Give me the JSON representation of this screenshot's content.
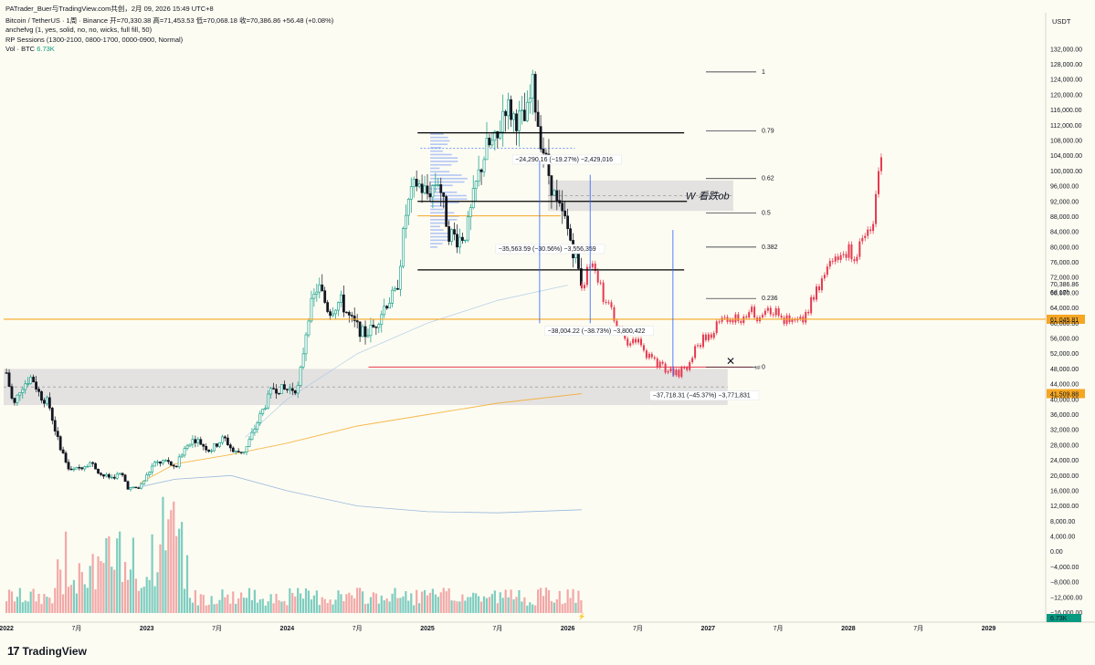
{
  "header": {
    "credit": "PATrader_Buer与TradingView.com共创，2月 09, 2026 15:49 UTC+8",
    "symbol_line": "Bitcoin / TetherUS · 1周 · Binance  开=70,330.38  高=71,453.53  低=70,068.18  收=70,386.86  +56.48 (+0.08%)",
    "indicator1": "anchefvg (1, yes, solid, no, no, wicks, full fill, 50)",
    "indicator2": "RP Sessions (1300-2100, 0800-1700, 0000-0900, Normal)",
    "vol_label": "Vol · BTC",
    "vol_value": "6.73K",
    "currency": "USDT"
  },
  "logo": {
    "icon": "tradingview-logo-icon",
    "text": "TradingView"
  },
  "colors": {
    "background": "#fdfcf2",
    "bull": "#089981",
    "bear": "#131722",
    "projection": "#e53950",
    "orange_line": "#f5a623",
    "vol_bull": "#7fcdc1",
    "vol_bear": "#f2a8a8",
    "zone": "#d9d9d9",
    "measure": "#2962ff"
  },
  "chart_data": {
    "type": "candlestick",
    "yaxis": {
      "min": -16000,
      "max": 134000,
      "ticks": [
        "132,000.00",
        "128,000.00",
        "124,000.00",
        "120,000.00",
        "116,000.00",
        "112,000.00",
        "108,000.00",
        "104,000.00",
        "100,000.00",
        "96,000.00",
        "92,000.00",
        "88,000.00",
        "84,000.00",
        "80,000.00",
        "76,000.00",
        "72,000.00",
        "68,000.00",
        "64,000.00",
        "60,000.00",
        "56,000.00",
        "52,000.00",
        "48,000.00",
        "44,000.00",
        "40,000.00",
        "36,000.00",
        "32,000.00",
        "28,000.00",
        "24,000.00",
        "20,000.00",
        "16,000.00",
        "12,000.00",
        "8,000.00",
        "4,000.00",
        "0.00",
        "−4,000.00",
        "−8,000.00",
        "−12,000.00",
        "−16,000.00"
      ]
    },
    "xaxis": {
      "labels": [
        {
          "text": "2022",
          "t": 2022.0
        },
        {
          "text": "7月",
          "t": 2022.5
        },
        {
          "text": "2023",
          "t": 2023.0
        },
        {
          "text": "7月",
          "t": 2023.5
        },
        {
          "text": "2024",
          "t": 2024.0
        },
        {
          "text": "7月",
          "t": 2024.5
        },
        {
          "text": "2025",
          "t": 2025.0
        },
        {
          "text": "7月",
          "t": 2025.5
        },
        {
          "text": "2026",
          "t": 2026.0
        },
        {
          "text": "7月",
          "t": 2026.5
        },
        {
          "text": "2027",
          "t": 2027.0
        },
        {
          "text": "7月",
          "t": 2027.5
        },
        {
          "text": "2028",
          "t": 2028.0
        },
        {
          "text": "7月",
          "t": 2028.5
        },
        {
          "text": "2029",
          "t": 2029.0
        }
      ],
      "min": 2021.98,
      "max": 2029.4
    },
    "price_path": [
      [
        2022.0,
        47000
      ],
      [
        2022.05,
        38000
      ],
      [
        2022.1,
        43000
      ],
      [
        2022.18,
        46000
      ],
      [
        2022.24,
        41000
      ],
      [
        2022.3,
        39000
      ],
      [
        2022.36,
        30000
      ],
      [
        2022.45,
        21000
      ],
      [
        2022.52,
        22000
      ],
      [
        2022.6,
        23500
      ],
      [
        2022.68,
        20000
      ],
      [
        2022.75,
        19500
      ],
      [
        2022.82,
        20500
      ],
      [
        2022.87,
        16500
      ],
      [
        2022.95,
        16800
      ],
      [
        2023.05,
        23000
      ],
      [
        2023.15,
        24000
      ],
      [
        2023.2,
        21500
      ],
      [
        2023.28,
        28500
      ],
      [
        2023.35,
        29500
      ],
      [
        2023.45,
        26500
      ],
      [
        2023.55,
        30000
      ],
      [
        2023.62,
        26000
      ],
      [
        2023.7,
        26500
      ],
      [
        2023.8,
        35000
      ],
      [
        2023.9,
        43000
      ],
      [
        2023.98,
        42500
      ],
      [
        2024.08,
        43000
      ],
      [
        2024.15,
        62000
      ],
      [
        2024.22,
        70000
      ],
      [
        2024.3,
        63000
      ],
      [
        2024.38,
        66000
      ],
      [
        2024.45,
        61000
      ],
      [
        2024.55,
        57000
      ],
      [
        2024.62,
        59000
      ],
      [
        2024.7,
        65000
      ],
      [
        2024.78,
        68000
      ],
      [
        2024.85,
        90000
      ],
      [
        2024.92,
        97000
      ],
      [
        2025.0,
        94000
      ],
      [
        2025.08,
        98000
      ],
      [
        2025.15,
        84000
      ],
      [
        2025.22,
        82000
      ],
      [
        2025.28,
        84000
      ],
      [
        2025.35,
        97000
      ],
      [
        2025.42,
        106000
      ],
      [
        2025.5,
        108000
      ],
      [
        2025.55,
        118000
      ],
      [
        2025.62,
        114000
      ],
      [
        2025.7,
        113000
      ],
      [
        2025.75,
        122000
      ],
      [
        2025.8,
        110000
      ],
      [
        2025.86,
        100000
      ],
      [
        2025.92,
        91000
      ],
      [
        2025.98,
        87000
      ],
      [
        2026.05,
        78000
      ],
      [
        2026.1,
        70400
      ]
    ],
    "projection_path": [
      [
        2026.1,
        70400
      ],
      [
        2026.16,
        76000
      ],
      [
        2026.22,
        70000
      ],
      [
        2026.28,
        65000
      ],
      [
        2026.34,
        60000
      ],
      [
        2026.4,
        55000
      ],
      [
        2026.48,
        56000
      ],
      [
        2026.55,
        52000
      ],
      [
        2026.62,
        50000
      ],
      [
        2026.7,
        48000
      ],
      [
        2026.78,
        46500
      ],
      [
        2026.85,
        48000
      ],
      [
        2026.92,
        54000
      ],
      [
        2027.0,
        57000
      ],
      [
        2027.08,
        60000
      ],
      [
        2027.14,
        62000
      ],
      [
        2027.2,
        61000
      ],
      [
        2027.28,
        63000
      ],
      [
        2027.35,
        62000
      ],
      [
        2027.42,
        65000
      ],
      [
        2027.5,
        62000
      ],
      [
        2027.58,
        60000
      ],
      [
        2027.66,
        60000
      ],
      [
        2027.75,
        66000
      ],
      [
        2027.85,
        74000
      ],
      [
        2027.95,
        80000
      ],
      [
        2028.05,
        78000
      ],
      [
        2028.12,
        83000
      ],
      [
        2028.18,
        88000
      ],
      [
        2028.24,
        104000
      ]
    ],
    "horizontal_lines": [
      {
        "name": "orange-level",
        "price": 61045.81,
        "label": "61,045.81",
        "color": "#f5a623"
      },
      {
        "name": "current-price",
        "price": 70386.86,
        "label": "70,386.86",
        "sublabel": "6d 17h"
      },
      {
        "name": "ssl-level",
        "price": 48500,
        "label": "ssl",
        "t1": 2024.58,
        "t2": 2027.32
      },
      {
        "name": "resistance-top",
        "price": 110000,
        "t1": 2024.93,
        "t2": 2026.83
      },
      {
        "name": "resistance-mid",
        "price": 92000,
        "t1": 2024.93,
        "t2": 2026.85
      },
      {
        "name": "support-low",
        "price": 74000,
        "t1": 2024.93,
        "t2": 2026.83
      }
    ],
    "left_axis_label": {
      "price": 41509.88,
      "label": "41,509.88"
    },
    "zones": [
      {
        "name": "bearish-ob-zone",
        "top": 97500,
        "bottom": 89500,
        "t1": 2025.86,
        "t2": 2027.18,
        "label": "W 看跌ob"
      },
      {
        "name": "demand-zone",
        "top": 48000,
        "bottom": 38500,
        "t1": 2021.98,
        "t2": 2027.14
      }
    ],
    "fib_levels": [
      {
        "label": "1",
        "price": 126000
      },
      {
        "label": "0.79",
        "price": 110500
      },
      {
        "label": "0.62",
        "price": 98000
      },
      {
        "label": "0.5",
        "price": 89000
      },
      {
        "label": "0.382",
        "price": 80000
      },
      {
        "label": "0.236",
        "price": 66500
      },
      {
        "label": "0",
        "price": 48500
      }
    ],
    "measurements": [
      {
        "text": "−24,290.16 (−19.27%) −2,429,016",
        "price": 102500,
        "t": 2025.62
      },
      {
        "text": "−35,563.59 (−30.56%) −3,556,359",
        "price": 79000,
        "t": 2025.5
      },
      {
        "text": "−38,004.22 (−38.73%) −3,800,422",
        "price": 57500,
        "t": 2025.85
      },
      {
        "text": "−37,718.31 (−45.37%) −3,771,831",
        "price": 40500,
        "t": 2026.6
      }
    ],
    "volume_note": "Volume histogram along bottom, BTC weekly volume"
  }
}
